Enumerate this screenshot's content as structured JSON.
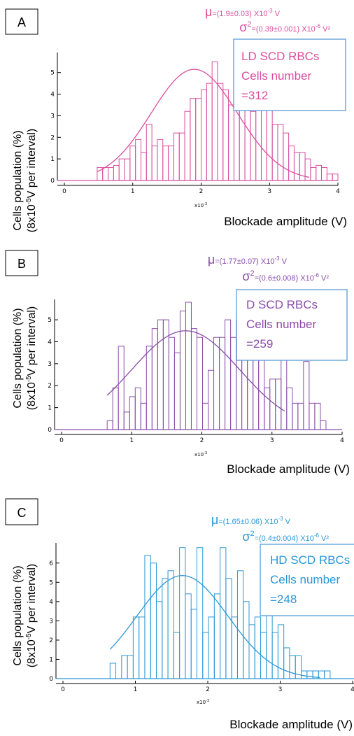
{
  "chart_data": [
    {
      "type": "bar",
      "panel_letter": "A",
      "color": "#d94e9f",
      "ylabel_line1": "Cells population (%)",
      "ylabel_line2_pre": "(8x10",
      "ylabel_line2_exp": "-5",
      "ylabel_line2_post": "V per interval)",
      "xlabel": "Blockade amplitude (V)",
      "x_multiplier": "x10",
      "x_multiplier_exp": "-3",
      "xlim": [
        0,
        4
      ],
      "ylim": [
        0,
        5.8
      ],
      "x_ticks": [
        "0",
        "1",
        "2",
        "3",
        "4"
      ],
      "y_ticks": [
        "0",
        "1",
        "2",
        "3",
        "4",
        "5"
      ],
      "bin_start": 0.48,
      "bin_width": 0.08,
      "values": [
        0.6,
        0.6,
        0.6,
        0.7,
        1.0,
        1.0,
        1.6,
        1.9,
        1.3,
        2.6,
        1.6,
        1.9,
        1.6,
        1.6,
        2.2,
        2.2,
        3.2,
        3.8,
        3.8,
        4.2,
        4.5,
        5.5,
        4.5,
        4.2,
        3.5,
        5.5,
        4.2,
        3.8,
        3.2,
        4.2,
        3.5,
        3.5,
        2.6,
        2.6,
        2.2,
        1.6,
        1.3,
        1.3,
        1.0,
        0.6,
        0.7,
        0.6,
        0.3,
        0.3
      ],
      "fit": {
        "mu": 1.9,
        "sigma": 0.63,
        "amplitude": 5.15,
        "x_start": 0.48,
        "x_end": 3.58
      },
      "stats": {
        "mu_symbol": "μ",
        "mu_text": "=(1.9±0.03) X10",
        "mu_exp": "-3",
        "mu_unit": " V",
        "sigma_symbol": "σ",
        "sigma_sup": "2",
        "sigma_text": "=(0.39±0.001) X10",
        "sigma_exp": "-6",
        "sigma_unit": " V²"
      },
      "info_box": {
        "line1": "LD SCD RBCs",
        "line2": "Cells number",
        "line3": "=312"
      }
    },
    {
      "type": "bar",
      "panel_letter": "B",
      "color": "#8a4ca8",
      "ylabel_line1": "Cells population (%)",
      "ylabel_line2_pre": "(8x10",
      "ylabel_line2_exp": "-5",
      "ylabel_line2_post": "V per interval)",
      "xlabel": "Blockade amplitude (V)",
      "x_multiplier": "x10",
      "x_multiplier_exp": "-3",
      "xlim": [
        0,
        4
      ],
      "ylim": [
        0,
        5.8
      ],
      "x_ticks": [
        "0",
        "1",
        "2",
        "3",
        "4"
      ],
      "y_ticks": [
        "0",
        "1",
        "2",
        "3",
        "4",
        "5"
      ],
      "bin_start": 0.65,
      "bin_width": 0.08,
      "values": [
        0.4,
        1.9,
        3.8,
        0.8,
        1.5,
        1.9,
        1.2,
        3.8,
        4.6,
        5.0,
        5.0,
        4.2,
        3.5,
        5.4,
        5.8,
        4.6,
        4.2,
        1.2,
        2.7,
        4.2,
        4.2,
        5.0,
        4.2,
        5.0,
        5.4,
        4.2,
        3.8,
        3.5,
        1.9,
        2.3,
        2.3,
        3.8,
        1.9,
        1.2,
        1.2,
        3.1,
        1.2,
        1.2,
        0.4
      ],
      "fit": {
        "mu": 1.77,
        "sigma": 0.77,
        "amplitude": 4.5,
        "x_start": 0.65,
        "x_end": 3.18
      },
      "stats": {
        "mu_symbol": "μ",
        "mu_text": "=(1.77±0.07) X10",
        "mu_exp": "-3",
        "mu_unit": " V",
        "sigma_symbol": "σ",
        "sigma_sup": "2",
        "sigma_text": "=(0.6±0.008) X10",
        "sigma_exp": "-6",
        "sigma_unit": " V²"
      },
      "info_box": {
        "line1": "D SCD RBCs",
        "line2": "Cells number",
        "line3": "=259"
      }
    },
    {
      "type": "bar",
      "panel_letter": "C",
      "color": "#2a98d6",
      "ylabel_line1": "Cells population (%)",
      "ylabel_line2_pre": "(8x10",
      "ylabel_line2_exp": "-5",
      "ylabel_line2_post": "V per interval)",
      "xlabel": "Blockade amplitude (V)",
      "x_multiplier": "x10",
      "x_multiplier_exp": "-3",
      "xlim": [
        0,
        4
      ],
      "ylim": [
        0,
        6.9
      ],
      "x_ticks": [
        "0",
        "1",
        "2",
        "3",
        "4"
      ],
      "y_ticks": [
        "0",
        "1",
        "2",
        "3",
        "4",
        "5",
        "6"
      ],
      "bin_start": 0.65,
      "bin_width": 0.08,
      "values": [
        0.8,
        0,
        1.2,
        1.2,
        3.2,
        3.2,
        6.4,
        6.0,
        4.0,
        5.2,
        5.6,
        2.4,
        6.8,
        4.4,
        3.6,
        6.8,
        2.4,
        3.2,
        4.4,
        6.8,
        5.2,
        3.2,
        5.6,
        4.0,
        2.8,
        3.2,
        2.4,
        3.6,
        2.4,
        2.8,
        1.6,
        1.2,
        1.2,
        0.4,
        0.4,
        0.4,
        0.4,
        0.4,
        0,
        0,
        0,
        0,
        0,
        0,
        0,
        0,
        0,
        0,
        0,
        0,
        0,
        0,
        0,
        0,
        0,
        0,
        0,
        0,
        0,
        0,
        0,
        0,
        0,
        0,
        0,
        0,
        0,
        0,
        0,
        0,
        0,
        0,
        0,
        0,
        0,
        0,
        0,
        0,
        0,
        0,
        0,
        0,
        0,
        0,
        0,
        0,
        0,
        0,
        0,
        0,
        0,
        0,
        0,
        0,
        0,
        0,
        0,
        0,
        0,
        0,
        0,
        0,
        0,
        0,
        0,
        0,
        0,
        0,
        0,
        0,
        0,
        0,
        0,
        0,
        0
      ],
      "fit": {
        "mu": 1.65,
        "sigma": 0.63,
        "amplitude": 5.35,
        "x_start": 0.65,
        "x_end": 3.55
      },
      "stats": {
        "mu_symbol": "μ",
        "mu_text": "=(1.65±0.06) X10",
        "mu_exp": "-3",
        "mu_unit": " V",
        "sigma_symbol": "σ",
        "sigma_sup": "2",
        "sigma_text": "=(0.4±0.004) X10",
        "sigma_exp": "-6",
        "sigma_unit": " V²"
      },
      "info_box": {
        "line1": "HD SCD RBCs",
        "line2": "Cells number",
        "line3": "=248"
      }
    }
  ]
}
